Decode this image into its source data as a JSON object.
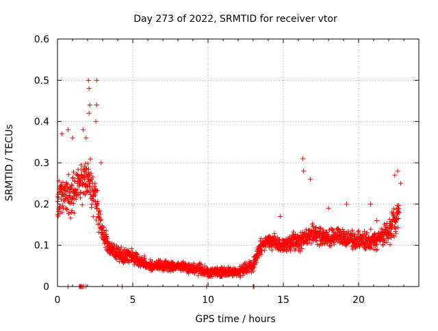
{
  "chart_data": {
    "type": "scatter",
    "title": "Day 273 of 2022, SRMTID for receiver vtor",
    "xlabel": "GPS time / hours",
    "ylabel": "SRMTID / TECUs",
    "xlim": [
      0,
      24
    ],
    "ylim": [
      0,
      0.6
    ],
    "xticks": [
      0,
      5,
      10,
      15,
      20
    ],
    "yticks": [
      0,
      0.1,
      0.2,
      0.3,
      0.4,
      0.5,
      0.6
    ],
    "xtick_labels": [
      "0",
      "5",
      "10",
      "15",
      "20"
    ],
    "ytick_labels": [
      "0",
      "0.1",
      "0.2",
      "0.3",
      "0.4",
      "0.5",
      "0.6"
    ],
    "grid": true,
    "marker": "plus",
    "color": "#ff0000",
    "series_profile": [
      {
        "x": 0.0,
        "center": 0.2,
        "spread": 0.09
      },
      {
        "x": 0.5,
        "center": 0.23,
        "spread": 0.09
      },
      {
        "x": 1.0,
        "center": 0.22,
        "spread": 0.08
      },
      {
        "x": 1.5,
        "center": 0.25,
        "spread": 0.07
      },
      {
        "x": 2.0,
        "center": 0.27,
        "spread": 0.1
      },
      {
        "x": 2.5,
        "center": 0.22,
        "spread": 0.08
      },
      {
        "x": 3.0,
        "center": 0.13,
        "spread": 0.04
      },
      {
        "x": 3.5,
        "center": 0.09,
        "spread": 0.03
      },
      {
        "x": 4.0,
        "center": 0.08,
        "spread": 0.03
      },
      {
        "x": 5.0,
        "center": 0.07,
        "spread": 0.03
      },
      {
        "x": 6.0,
        "center": 0.05,
        "spread": 0.02
      },
      {
        "x": 7.0,
        "center": 0.05,
        "spread": 0.02
      },
      {
        "x": 8.0,
        "center": 0.05,
        "spread": 0.02
      },
      {
        "x": 9.0,
        "center": 0.045,
        "spread": 0.02
      },
      {
        "x": 10.0,
        "center": 0.035,
        "spread": 0.02
      },
      {
        "x": 11.0,
        "center": 0.035,
        "spread": 0.02
      },
      {
        "x": 12.0,
        "center": 0.035,
        "spread": 0.02
      },
      {
        "x": 13.0,
        "center": 0.05,
        "spread": 0.03
      },
      {
        "x": 13.5,
        "center": 0.1,
        "spread": 0.03
      },
      {
        "x": 14.0,
        "center": 0.11,
        "spread": 0.03
      },
      {
        "x": 15.0,
        "center": 0.1,
        "spread": 0.03
      },
      {
        "x": 16.0,
        "center": 0.11,
        "spread": 0.04
      },
      {
        "x": 17.0,
        "center": 0.13,
        "spread": 0.04
      },
      {
        "x": 18.0,
        "center": 0.12,
        "spread": 0.04
      },
      {
        "x": 19.0,
        "center": 0.12,
        "spread": 0.04
      },
      {
        "x": 20.0,
        "center": 0.11,
        "spread": 0.04
      },
      {
        "x": 21.0,
        "center": 0.11,
        "spread": 0.04
      },
      {
        "x": 22.0,
        "center": 0.13,
        "spread": 0.05
      },
      {
        "x": 22.7,
        "center": 0.18,
        "spread": 0.07
      }
    ],
    "spikes": [
      {
        "x": 0.3,
        "y": 0.37
      },
      {
        "x": 0.7,
        "y": 0.38
      },
      {
        "x": 1.0,
        "y": 0.36
      },
      {
        "x": 1.7,
        "y": 0.38
      },
      {
        "x": 1.9,
        "y": 0.36
      },
      {
        "x": 2.05,
        "y": 0.5
      },
      {
        "x": 2.1,
        "y": 0.48
      },
      {
        "x": 2.15,
        "y": 0.44
      },
      {
        "x": 2.1,
        "y": 0.42
      },
      {
        "x": 2.6,
        "y": 0.5
      },
      {
        "x": 2.6,
        "y": 0.44
      },
      {
        "x": 2.55,
        "y": 0.4
      },
      {
        "x": 2.9,
        "y": 0.3
      },
      {
        "x": 16.3,
        "y": 0.31
      },
      {
        "x": 16.35,
        "y": 0.28
      },
      {
        "x": 16.8,
        "y": 0.26
      },
      {
        "x": 22.6,
        "y": 0.28
      },
      {
        "x": 22.4,
        "y": 0.27
      },
      {
        "x": 22.8,
        "y": 0.25
      },
      {
        "x": 14.8,
        "y": 0.17
      },
      {
        "x": 18.0,
        "y": 0.19
      },
      {
        "x": 19.2,
        "y": 0.2
      },
      {
        "x": 20.8,
        "y": 0.2
      },
      {
        "x": 21.2,
        "y": 0.16
      }
    ],
    "zero_points": [
      0.7,
      1.45,
      1.5,
      1.55,
      1.6,
      1.65,
      1.75,
      1.9,
      4.3,
      9.9,
      13.0,
      13.05
    ]
  }
}
